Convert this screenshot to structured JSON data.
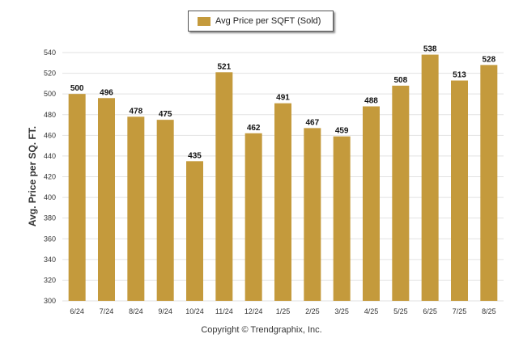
{
  "chart_data": {
    "type": "bar",
    "title": "",
    "xlabel": "",
    "ylabel": "Avg. Price per SQ. FT.",
    "categories": [
      "6/24",
      "7/24",
      "8/24",
      "9/24",
      "10/24",
      "11/24",
      "12/24",
      "1/25",
      "2/25",
      "3/25",
      "4/25",
      "5/25",
      "6/25",
      "7/25",
      "8/25"
    ],
    "series": [
      {
        "name": "Avg Price per SQFT (Sold)",
        "values": [
          500,
          496,
          478,
          475,
          435,
          521,
          462,
          491,
          467,
          459,
          488,
          508,
          538,
          513,
          528
        ]
      }
    ],
    "ylim": [
      300,
      540
    ],
    "yticks": [
      300,
      320,
      340,
      360,
      380,
      400,
      420,
      440,
      460,
      480,
      500,
      520,
      540
    ],
    "grid": true,
    "legend": "top-center",
    "bar_color": "#C49A3C",
    "credit": "Copyright © Trendgraphix, Inc."
  }
}
